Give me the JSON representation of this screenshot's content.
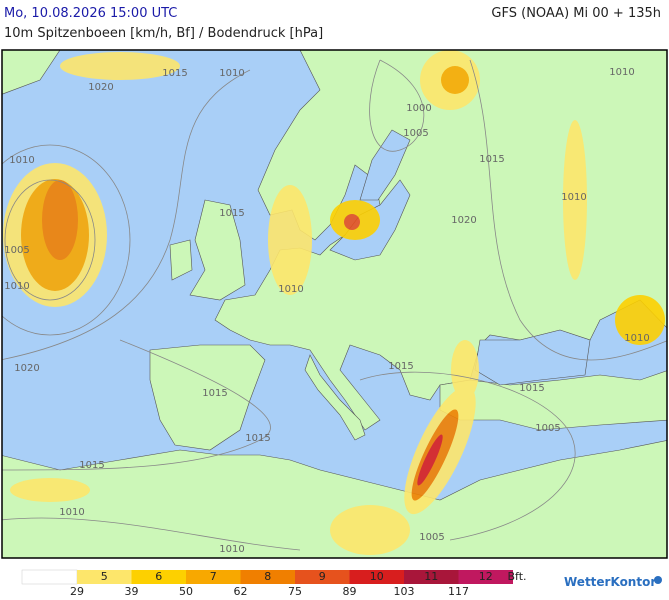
{
  "header": {
    "datetime": "Mo, 10.08.2026 15:00 UTC",
    "product": "10m Spitzenboeen [km/h, Bf] / Bodendruck [hPa]",
    "model": "GFS (NOAA) Mi 00 + 135h"
  },
  "map": {
    "isobar_labels": [
      "1015",
      "1010",
      "1020",
      "1010",
      "1005",
      "1010",
      "1015",
      "1010",
      "1000",
      "1005",
      "1015",
      "1020",
      "1010",
      "1010",
      "1020",
      "1015",
      "1015",
      "1015",
      "1005",
      "1015",
      "1015",
      "1010",
      "1010",
      "1005",
      "1010"
    ]
  },
  "legend": {
    "classes": [
      {
        "bft": 5,
        "color": "#fde66b"
      },
      {
        "bft": 6,
        "color": "#fdd000"
      },
      {
        "bft": 7,
        "color": "#f8a800"
      },
      {
        "bft": 8,
        "color": "#f07f00"
      },
      {
        "bft": 9,
        "color": "#e6521d"
      },
      {
        "bft": 10,
        "color": "#d81e1e"
      },
      {
        "bft": 11,
        "color": "#a8163a"
      },
      {
        "bft": 12,
        "color": "#c0185f"
      }
    ],
    "kmh": [
      29,
      39,
      50,
      62,
      75,
      89,
      103,
      117
    ],
    "unit": "Bft."
  },
  "logo": "WetterKontor"
}
